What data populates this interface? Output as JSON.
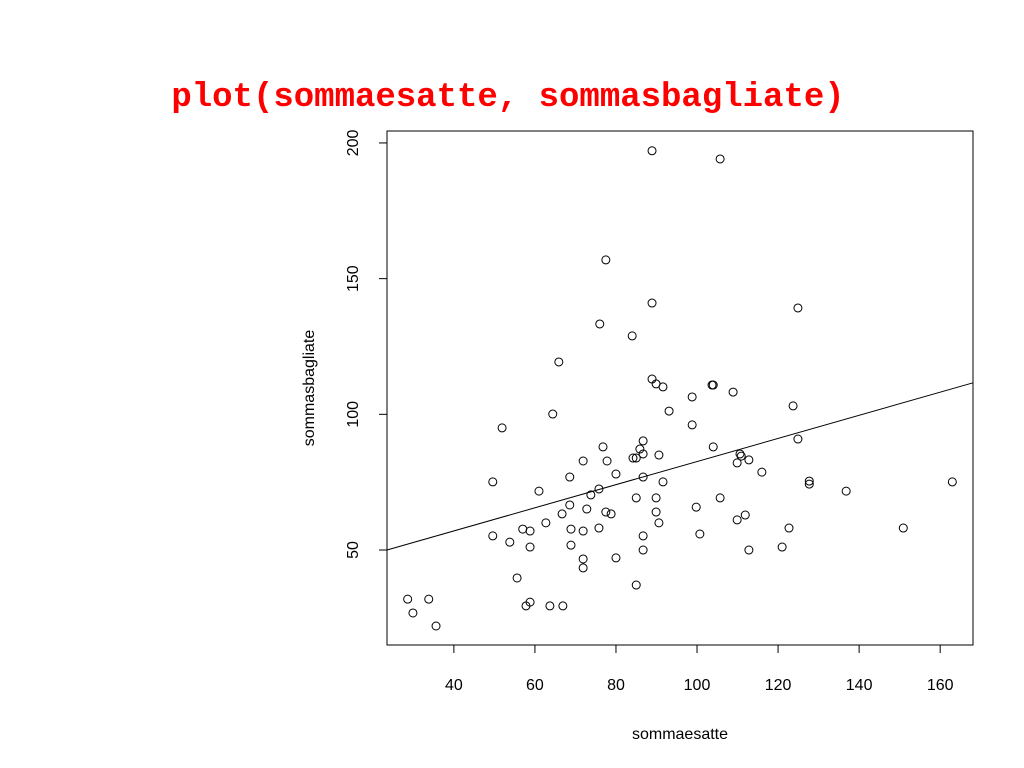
{
  "chart_data": {
    "type": "scatter",
    "title": "plot(sommaesatte, sommasbagliate)",
    "x_label": "sommaesatte",
    "y_label": "sommasbagliate",
    "xlim": [
      23.5,
      168.1
    ],
    "ylim": [
      15.0,
      204.4
    ],
    "xticks": [
      40,
      60,
      80,
      100,
      120,
      140,
      160
    ],
    "yticks": [
      50,
      100,
      150,
      200
    ],
    "grid": false,
    "color": "#000000",
    "fit_line": {
      "intercept": 40.0,
      "slope": 0.426
    },
    "x": [
      28.6,
      29.9,
      33.8,
      35.6,
      49.6,
      49.6,
      51.9,
      53.8,
      55.6,
      57.0,
      57.8,
      58.8,
      58.8,
      58.8,
      61.0,
      62.7,
      63.7,
      64.4,
      65.9,
      66.7,
      66.9,
      68.6,
      68.6,
      68.9,
      68.9,
      71.9,
      71.9,
      71.9,
      71.9,
      72.8,
      73.8,
      75.8,
      75.8,
      76.0,
      76.8,
      77.5,
      77.5,
      77.8,
      78.8,
      80.0,
      80.0,
      84.0,
      84.2,
      85.0,
      85.0,
      85.0,
      85.9,
      86.7,
      86.7,
      86.7,
      86.7,
      86.7,
      88.9,
      88.9,
      88.9,
      89.9,
      89.9,
      89.9,
      90.6,
      90.6,
      91.6,
      91.6,
      93.1,
      98.8,
      98.8,
      99.8,
      100.7,
      103.7,
      104.0,
      104.0,
      105.7,
      105.7,
      108.9,
      109.9,
      109.9,
      110.6,
      110.9,
      111.9,
      112.8,
      112.8,
      116.0,
      121.0,
      122.7,
      123.7,
      124.9,
      124.9,
      127.7,
      127.7,
      136.8,
      150.9,
      163.0
    ],
    "values": [
      31.9,
      26.8,
      31.9,
      22.0,
      75.1,
      55.2,
      95.0,
      52.9,
      39.7,
      57.7,
      29.4,
      30.8,
      57.0,
      51.1,
      71.7,
      60.0,
      29.4,
      100.1,
      119.3,
      63.3,
      29.4,
      76.9,
      66.6,
      57.7,
      51.8,
      82.8,
      57.0,
      46.7,
      43.4,
      65.1,
      70.3,
      72.5,
      58.1,
      133.3,
      88.0,
      64.0,
      156.9,
      82.8,
      63.3,
      78.0,
      47.1,
      128.9,
      83.9,
      83.9,
      69.2,
      37.1,
      87.2,
      90.2,
      85.4,
      76.9,
      55.2,
      50.0,
      197.1,
      141.0,
      113.0,
      111.2,
      69.2,
      64.0,
      85.0,
      60.0,
      110.1,
      75.1,
      101.2,
      106.4,
      96.1,
      65.8,
      55.9,
      110.8,
      110.8,
      88.0,
      69.2,
      194.1,
      108.2,
      82.1,
      61.1,
      85.4,
      84.6,
      62.9,
      83.2,
      50.0,
      78.7,
      51.1,
      58.1,
      103.1,
      139.2,
      90.9,
      75.4,
      74.3,
      71.7,
      58.1,
      75.1
    ]
  }
}
